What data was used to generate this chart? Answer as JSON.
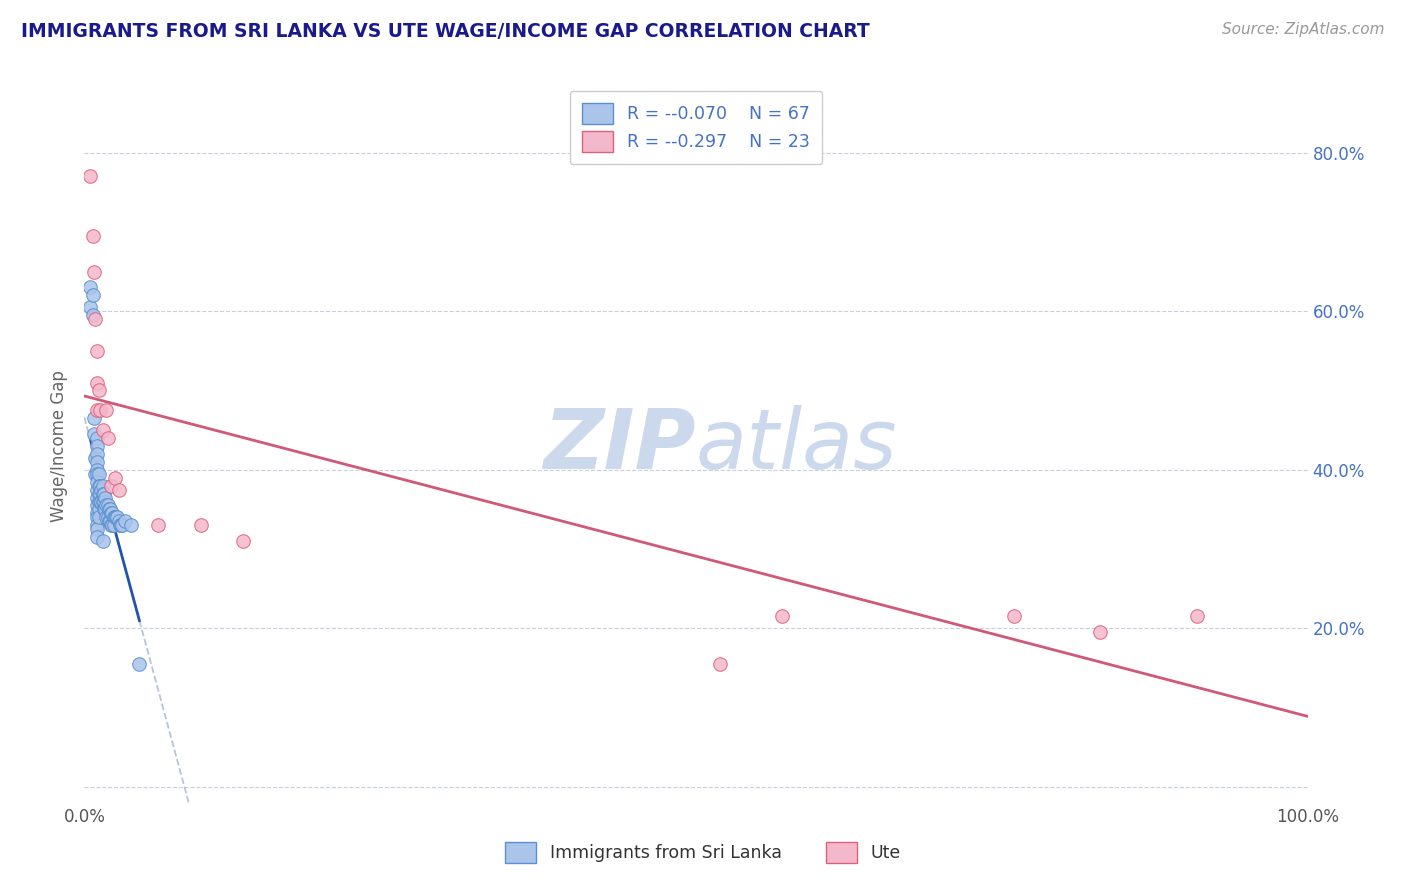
{
  "title": "IMMIGRANTS FROM SRI LANKA VS UTE WAGE/INCOME GAP CORRELATION CHART",
  "source": "Source: ZipAtlas.com",
  "ylabel": "Wage/Income Gap",
  "legend_r1": "-0.070",
  "legend_n1": "N = 67",
  "legend_r2": "-0.297",
  "legend_n2": "N = 23",
  "legend_label1": "Immigrants from Sri Lanka",
  "legend_label2": "Ute",
  "right_yticks": [
    0.2,
    0.4,
    0.6,
    0.8
  ],
  "right_yticklabels": [
    "20.0%",
    "40.0%",
    "60.0%",
    "80.0%"
  ],
  "xlim": [
    0.0,
    1.0
  ],
  "ylim": [
    -0.02,
    0.88
  ],
  "color_blue": "#aac4ea",
  "color_pink": "#f4b8cc",
  "color_blue_edge": "#5a8fd0",
  "color_pink_edge": "#e0607a",
  "color_trend_blue": "#2255aa",
  "color_trend_pink": "#d05878",
  "color_trend_dash": "#b0bcd8",
  "title_color": "#1a1a8c",
  "source_color": "#999999",
  "background_color": "#ffffff",
  "grid_color": "#c8d0dc",
  "watermark_color": "#ccd8ec",
  "marker_size": 95,
  "blue_x": [
    0.005,
    0.005,
    0.007,
    0.007,
    0.008,
    0.008,
    0.009,
    0.009,
    0.01,
    0.01,
    0.01,
    0.01,
    0.01,
    0.01,
    0.01,
    0.01,
    0.01,
    0.01,
    0.01,
    0.01,
    0.01,
    0.01,
    0.01,
    0.012,
    0.012,
    0.012,
    0.012,
    0.012,
    0.012,
    0.013,
    0.013,
    0.013,
    0.014,
    0.014,
    0.015,
    0.015,
    0.015,
    0.015,
    0.016,
    0.016,
    0.016,
    0.017,
    0.017,
    0.018,
    0.018,
    0.019,
    0.019,
    0.02,
    0.02,
    0.021,
    0.021,
    0.022,
    0.022,
    0.023,
    0.023,
    0.024,
    0.024,
    0.025,
    0.026,
    0.027,
    0.028,
    0.029,
    0.03,
    0.031,
    0.033,
    0.038,
    0.045
  ],
  "blue_y": [
    0.63,
    0.605,
    0.62,
    0.595,
    0.465,
    0.445,
    0.415,
    0.395,
    0.44,
    0.43,
    0.42,
    0.41,
    0.4,
    0.395,
    0.385,
    0.375,
    0.365,
    0.355,
    0.345,
    0.34,
    0.33,
    0.325,
    0.315,
    0.395,
    0.38,
    0.37,
    0.36,
    0.35,
    0.34,
    0.38,
    0.37,
    0.36,
    0.375,
    0.36,
    0.38,
    0.37,
    0.36,
    0.31,
    0.37,
    0.36,
    0.35,
    0.365,
    0.35,
    0.355,
    0.34,
    0.355,
    0.34,
    0.35,
    0.335,
    0.35,
    0.335,
    0.345,
    0.33,
    0.345,
    0.33,
    0.34,
    0.33,
    0.34,
    0.34,
    0.34,
    0.335,
    0.33,
    0.33,
    0.33,
    0.335,
    0.33,
    0.155
  ],
  "pink_x": [
    0.005,
    0.007,
    0.008,
    0.009,
    0.01,
    0.01,
    0.01,
    0.012,
    0.013,
    0.015,
    0.018,
    0.019,
    0.022,
    0.025,
    0.028,
    0.06,
    0.095,
    0.13,
    0.52,
    0.57,
    0.76,
    0.83,
    0.91
  ],
  "pink_y": [
    0.77,
    0.695,
    0.65,
    0.59,
    0.55,
    0.51,
    0.475,
    0.5,
    0.475,
    0.45,
    0.475,
    0.44,
    0.38,
    0.39,
    0.375,
    0.33,
    0.33,
    0.31,
    0.155,
    0.215,
    0.215,
    0.195,
    0.215
  ]
}
